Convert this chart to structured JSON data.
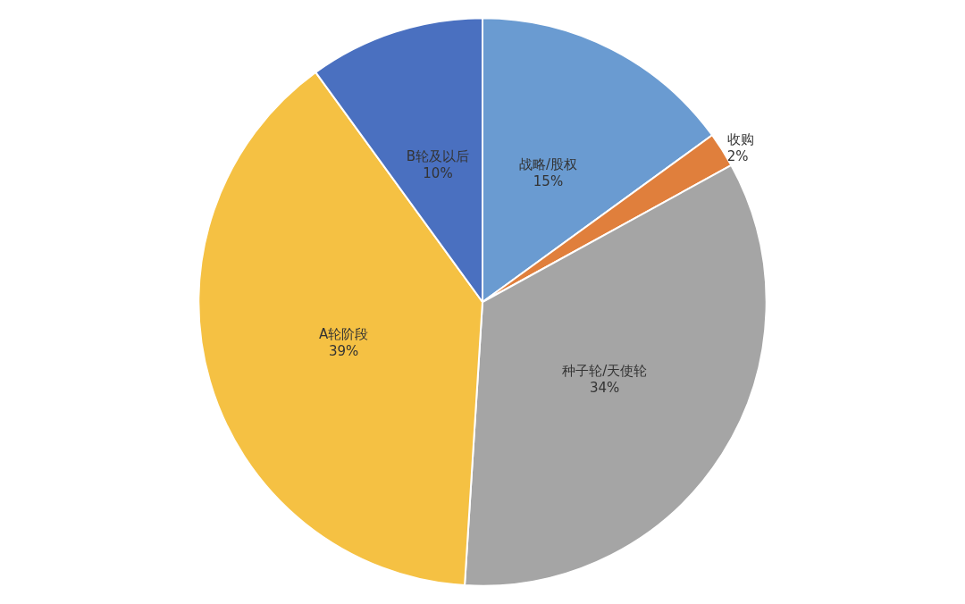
{
  "chart_data": {
    "type": "pie",
    "categories": [
      "战略/股权",
      "收购",
      "种子轮/天使轮",
      "A轮阶段",
      "B轮及以后"
    ],
    "values": [
      15,
      2,
      34,
      39,
      10
    ],
    "colors": [
      "#6a9bd1",
      "#e07f3c",
      "#a5a5a5",
      "#f5c143",
      "#4a70c0"
    ],
    "value_labels": [
      "15%",
      "2%",
      "34%",
      "39%",
      "10%"
    ],
    "legend": false
  }
}
